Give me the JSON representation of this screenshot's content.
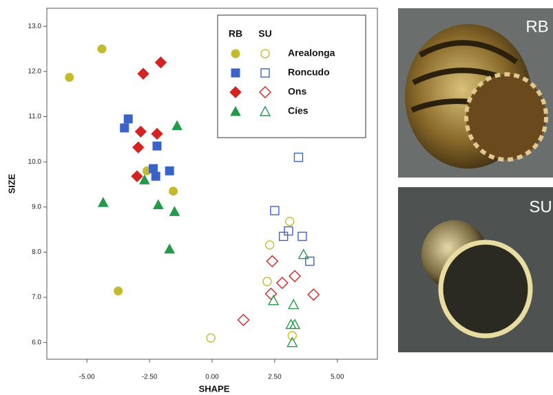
{
  "chart_data": {
    "type": "scatter",
    "x_label": "SHAPE",
    "y_label": "SIZE",
    "xlim": [
      -6.6,
      6.6
    ],
    "ylim": [
      5.63,
      13.4
    ],
    "xticks": [
      {
        "value": -5,
        "label": "-5.00"
      },
      {
        "value": -2.5,
        "label": "-2.50"
      },
      {
        "value": 0,
        "label": "0.00"
      },
      {
        "value": 2.5,
        "label": "2.50"
      },
      {
        "value": 5,
        "label": "5.00"
      }
    ],
    "yticks": [
      {
        "value": 6,
        "label": "6.0"
      },
      {
        "value": 7,
        "label": "7.0"
      },
      {
        "value": 8,
        "label": "8.0"
      },
      {
        "value": 9,
        "label": "9.0"
      },
      {
        "value": 10,
        "label": "10.0"
      },
      {
        "value": 11,
        "label": "11.0"
      },
      {
        "value": 12,
        "label": "12.0"
      },
      {
        "value": 13,
        "label": "13.0"
      }
    ],
    "legend_columns": [
      "RB",
      "SU"
    ],
    "series": [
      {
        "name": "Arealonga",
        "marker": "circle",
        "color": "#c4bb2c",
        "rb_x": [
          -5.7,
          -4.4,
          -2.6,
          -1.55,
          -3.75
        ],
        "rb_y": [
          11.87,
          12.5,
          9.8,
          9.35,
          7.14
        ],
        "su_x": [
          -0.05,
          2.3,
          3.1,
          2.2,
          3.2
        ],
        "su_y": [
          6.1,
          8.16,
          8.68,
          7.35,
          6.15
        ]
      },
      {
        "name": "Roncudo",
        "marker": "square",
        "color": "#3b62c6",
        "rb_x": [
          -3.35,
          -3.5,
          -2.2,
          -2.35,
          -2.25,
          -1.7
        ],
        "rb_y": [
          10.95,
          10.75,
          10.35,
          9.85,
          9.68,
          9.8
        ],
        "su_x": [
          3.45,
          2.5,
          3.05,
          2.85,
          3.6,
          3.9
        ],
        "su_y": [
          10.1,
          8.92,
          8.47,
          8.35,
          8.35,
          7.8
        ]
      },
      {
        "name": "Ons",
        "marker": "diamond",
        "color": "#d52222",
        "rb_x": [
          -2.05,
          -2.75,
          -2.85,
          -2.2,
          -2.95,
          -3.0
        ],
        "rb_y": [
          12.2,
          11.95,
          10.67,
          10.62,
          10.32,
          9.68
        ],
        "su_x": [
          2.4,
          2.8,
          3.3,
          2.35,
          4.05,
          1.25
        ],
        "su_y": [
          7.8,
          7.32,
          7.47,
          7.08,
          7.06,
          6.5
        ]
      },
      {
        "name": "Cíes",
        "marker": "triangle",
        "color": "#239a4a",
        "rb_x": [
          -1.4,
          -4.35,
          -2.7,
          -2.15,
          -1.5,
          -1.7
        ],
        "rb_y": [
          10.8,
          9.1,
          9.6,
          9.05,
          8.9,
          8.07
        ],
        "su_x": [
          3.65,
          2.45,
          3.25,
          3.15,
          3.3,
          3.2
        ],
        "su_y": [
          7.95,
          6.93,
          6.84,
          6.4,
          6.4,
          6.0
        ]
      }
    ]
  },
  "photos": [
    {
      "label": "RB"
    },
    {
      "label": "SU"
    }
  ]
}
